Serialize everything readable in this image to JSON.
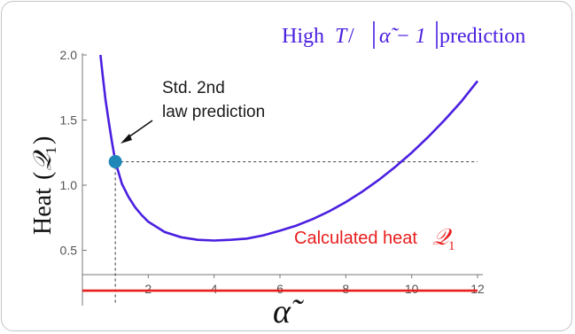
{
  "chart_data": {
    "type": "line",
    "title": "",
    "xlabel": "α̃",
    "ylabel": {
      "word": "Heat",
      "symbol": "𝒬",
      "subscript": "1"
    },
    "xlim": [
      0,
      12
    ],
    "ylim": [
      0,
      2.0
    ],
    "xticks": [
      2,
      4,
      6,
      8,
      10,
      12
    ],
    "yticks": [
      0.5,
      1.0,
      1.5,
      2.0
    ],
    "xtick_labels": [
      "2",
      "4",
      "6",
      "8",
      "10",
      "12"
    ],
    "ytick_labels": [
      "0.5",
      "1.0",
      "1.5",
      "2.0"
    ],
    "grid": false,
    "series": [
      {
        "id": "high-T-prediction",
        "label_parts": {
          "prefix": "High ",
          "var": "T",
          "middle": " /",
          "abs": "α̃ − 1",
          "suffix": "  prediction"
        },
        "color": "#4a1fe0",
        "x": [
          0.55,
          0.6,
          0.7,
          0.8,
          0.9,
          1.0,
          1.2,
          1.4,
          1.6,
          1.8,
          2.0,
          2.5,
          3.0,
          3.5,
          4.0,
          4.5,
          5.0,
          5.5,
          6.0,
          6.5,
          7.0,
          7.5,
          8.0,
          8.5,
          9.0,
          9.5,
          10.0,
          10.5,
          11.0,
          11.5,
          12.0
        ],
        "y": [
          2.0,
          1.88,
          1.66,
          1.49,
          1.33,
          1.18,
          1.01,
          0.91,
          0.83,
          0.77,
          0.72,
          0.64,
          0.6,
          0.58,
          0.575,
          0.58,
          0.59,
          0.615,
          0.65,
          0.69,
          0.74,
          0.8,
          0.87,
          0.95,
          1.04,
          1.14,
          1.25,
          1.37,
          1.5,
          1.64,
          1.8
        ]
      },
      {
        "id": "calculated-heat",
        "label_parts": {
          "prefix": "Calculated heat  ",
          "symbol": "𝒬",
          "subscript": "1"
        },
        "color": "#e81d1d",
        "x": [
          0,
          12
        ],
        "y": [
          0.19,
          0.19
        ]
      }
    ],
    "highlight_point": {
      "x": 1.0,
      "y": 1.18,
      "color": "#1f86b8"
    },
    "reference_lines": {
      "y": 1.18,
      "x": 1.0
    },
    "annotation": {
      "lines": [
        "Std. 2nd",
        "law prediction"
      ]
    }
  }
}
